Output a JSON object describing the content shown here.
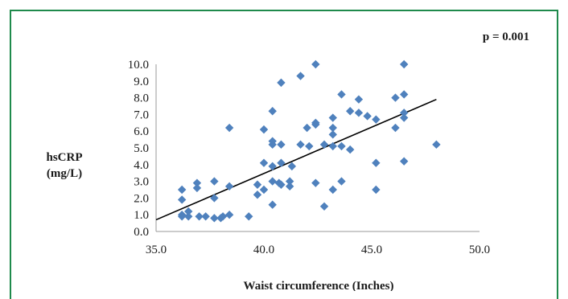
{
  "chart_data": {
    "type": "scatter",
    "title": "",
    "annotation": "p = 0.001",
    "xlabel": "Waist circumference (Inches)",
    "ylabel_lines": [
      "hsCRP",
      "(mg/L)"
    ],
    "xlim": [
      35,
      50
    ],
    "ylim": [
      0,
      10
    ],
    "x_ticks": [
      "35.0",
      "40.0",
      "45.0",
      "50.0"
    ],
    "y_ticks": [
      "0.0",
      "1.0",
      "2.0",
      "3.0",
      "4.0",
      "5.0",
      "6.0",
      "7.0",
      "8.0",
      "9.0",
      "10.0"
    ],
    "grid": false,
    "legend": "none",
    "marker_color": "#4f81bd",
    "trendline_color": "#000000",
    "trendline": {
      "x": [
        35,
        48
      ],
      "y": [
        0.7,
        7.9
      ]
    },
    "points": [
      {
        "x": 36.2,
        "y": 2.5
      },
      {
        "x": 36.2,
        "y": 1.9
      },
      {
        "x": 36.2,
        "y": 1.0
      },
      {
        "x": 36.2,
        "y": 0.9
      },
      {
        "x": 36.5,
        "y": 1.2
      },
      {
        "x": 36.5,
        "y": 0.9
      },
      {
        "x": 36.9,
        "y": 2.9
      },
      {
        "x": 36.9,
        "y": 2.6
      },
      {
        "x": 37.0,
        "y": 0.9
      },
      {
        "x": 37.3,
        "y": 0.9
      },
      {
        "x": 37.7,
        "y": 3.0
      },
      {
        "x": 37.7,
        "y": 2.0
      },
      {
        "x": 37.7,
        "y": 0.8
      },
      {
        "x": 38.0,
        "y": 0.8
      },
      {
        "x": 38.1,
        "y": 0.9
      },
      {
        "x": 38.4,
        "y": 6.2
      },
      {
        "x": 38.4,
        "y": 2.7
      },
      {
        "x": 38.4,
        "y": 1.0
      },
      {
        "x": 39.3,
        "y": 0.9
      },
      {
        "x": 39.7,
        "y": 2.8
      },
      {
        "x": 39.7,
        "y": 2.2
      },
      {
        "x": 40.0,
        "y": 6.1
      },
      {
        "x": 40.0,
        "y": 4.1
      },
      {
        "x": 40.0,
        "y": 2.5
      },
      {
        "x": 40.4,
        "y": 7.2
      },
      {
        "x": 40.4,
        "y": 5.4
      },
      {
        "x": 40.4,
        "y": 5.2
      },
      {
        "x": 40.4,
        "y": 3.9
      },
      {
        "x": 40.4,
        "y": 3.0
      },
      {
        "x": 40.4,
        "y": 1.6
      },
      {
        "x": 40.7,
        "y": 2.9
      },
      {
        "x": 40.8,
        "y": 8.9
      },
      {
        "x": 40.8,
        "y": 5.2
      },
      {
        "x": 40.8,
        "y": 4.1
      },
      {
        "x": 40.8,
        "y": 2.8
      },
      {
        "x": 41.2,
        "y": 3.0
      },
      {
        "x": 41.2,
        "y": 2.7
      },
      {
        "x": 41.3,
        "y": 3.9
      },
      {
        "x": 41.7,
        "y": 9.3
      },
      {
        "x": 41.7,
        "y": 5.2
      },
      {
        "x": 42.0,
        "y": 6.2
      },
      {
        "x": 42.1,
        "y": 5.1
      },
      {
        "x": 42.4,
        "y": 10.0
      },
      {
        "x": 42.4,
        "y": 6.5
      },
      {
        "x": 42.4,
        "y": 6.4
      },
      {
        "x": 42.4,
        "y": 2.9
      },
      {
        "x": 42.8,
        "y": 5.2
      },
      {
        "x": 42.8,
        "y": 1.5
      },
      {
        "x": 43.2,
        "y": 6.8
      },
      {
        "x": 43.2,
        "y": 6.2
      },
      {
        "x": 43.2,
        "y": 5.8
      },
      {
        "x": 43.2,
        "y": 5.1
      },
      {
        "x": 43.2,
        "y": 2.5
      },
      {
        "x": 43.6,
        "y": 8.2
      },
      {
        "x": 43.6,
        "y": 5.1
      },
      {
        "x": 43.6,
        "y": 3.0
      },
      {
        "x": 44.0,
        "y": 7.2
      },
      {
        "x": 44.0,
        "y": 4.9
      },
      {
        "x": 44.4,
        "y": 7.9
      },
      {
        "x": 44.4,
        "y": 7.1
      },
      {
        "x": 44.8,
        "y": 6.9
      },
      {
        "x": 45.2,
        "y": 6.7
      },
      {
        "x": 45.2,
        "y": 4.1
      },
      {
        "x": 45.2,
        "y": 2.5
      },
      {
        "x": 46.1,
        "y": 8.0
      },
      {
        "x": 46.1,
        "y": 6.2
      },
      {
        "x": 46.5,
        "y": 10.0
      },
      {
        "x": 46.5,
        "y": 8.2
      },
      {
        "x": 46.5,
        "y": 7.1
      },
      {
        "x": 46.5,
        "y": 6.8
      },
      {
        "x": 46.5,
        "y": 4.2
      },
      {
        "x": 48.0,
        "y": 5.2
      }
    ]
  }
}
